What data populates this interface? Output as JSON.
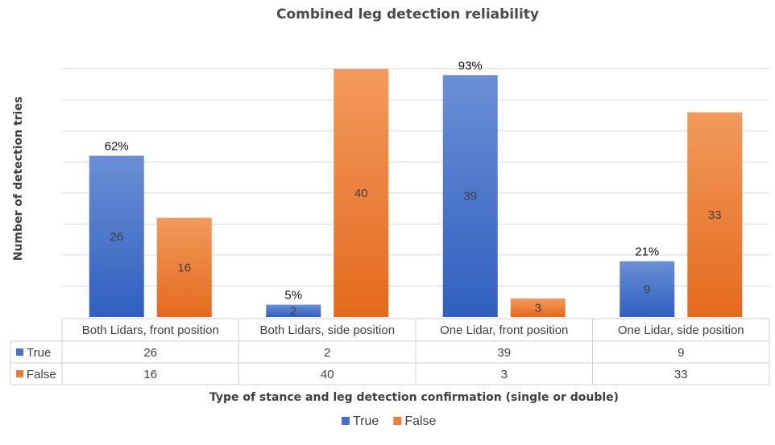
{
  "chart_data": {
    "type": "bar",
    "title": "Combined leg detection reliability",
    "xlabel": "Type of stance and leg detection confirmation (single or double)",
    "ylabel": "Number of detection tries",
    "categories": [
      "Both Lidars, front position",
      "Both Lidars, side position",
      "One Lidar, front position",
      "One Lidar,  side position"
    ],
    "series": [
      {
        "name": "True",
        "values": [
          26,
          2,
          39,
          9
        ],
        "color": "#4472c4"
      },
      {
        "name": "False",
        "values": [
          16,
          40,
          3,
          33
        ],
        "color": "#ed7d31"
      }
    ],
    "annotations": [
      "62%",
      "5%",
      "93%",
      "21%"
    ],
    "ylim": [
      0,
      40
    ],
    "grid": true,
    "legend": "bottom",
    "data_table": true
  }
}
